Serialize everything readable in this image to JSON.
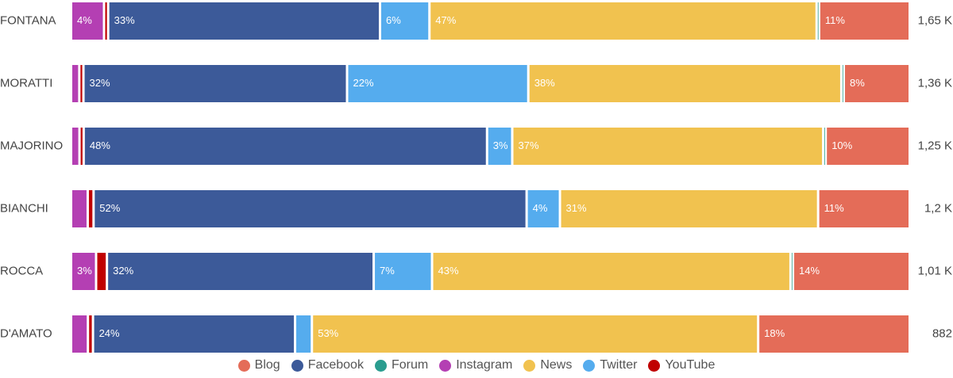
{
  "chart_data": {
    "type": "bar",
    "orientation": "horizontal",
    "stacked": true,
    "normalized": true,
    "categories": [
      "FONTANA",
      "MORATTI",
      "MAJORINO",
      "BIANCHI",
      "ROCCA",
      "D'AMATO"
    ],
    "totals": [
      "1,65 K",
      "1,36 K",
      "1,25 K",
      "1,2 K",
      "1,01 K",
      "882"
    ],
    "series": [
      {
        "name": "Instagram",
        "color": "#b43fb3",
        "values": [
          4,
          1,
          1,
          2,
          3,
          2
        ],
        "labels": [
          "4%",
          "",
          "",
          "",
          "3%",
          ""
        ]
      },
      {
        "name": "YouTube",
        "color": "#c00000",
        "values": [
          0.5,
          0.5,
          0.5,
          0.7,
          1.3,
          0.6
        ],
        "labels": [
          "",
          "",
          "",
          "",
          "",
          ""
        ]
      },
      {
        "name": "Facebook",
        "color": "#3c5a99",
        "values": [
          33,
          32,
          48,
          52,
          32,
          24
        ],
        "labels": [
          "33%",
          "32%",
          "48%",
          "52%",
          "32%",
          "24%"
        ]
      },
      {
        "name": "Twitter",
        "color": "#55acee",
        "values": [
          6,
          22,
          3,
          4,
          7,
          2
        ],
        "labels": [
          "6%",
          "22%",
          "3%",
          "4%",
          "7%",
          ""
        ]
      },
      {
        "name": "News",
        "color": "#f1c24f",
        "values": [
          47,
          38,
          37,
          31,
          43,
          53
        ],
        "labels": [
          "47%",
          "38%",
          "37%",
          "31%",
          "43%",
          "53%"
        ]
      },
      {
        "name": "Forum",
        "color": "#2a9d8f",
        "values": [
          0.3,
          0.3,
          0.3,
          0,
          0.3,
          0
        ],
        "labels": [
          "",
          "",
          "",
          "",
          "",
          ""
        ]
      },
      {
        "name": "Blog",
        "color": "#e46c58",
        "values": [
          11,
          8,
          10,
          11,
          14,
          18
        ],
        "labels": [
          "11%",
          "8%",
          "10%",
          "11%",
          "14%",
          "18%"
        ]
      }
    ],
    "legend": {
      "position": "bottom",
      "order": [
        "Blog",
        "Facebook",
        "Forum",
        "Instagram",
        "News",
        "Twitter",
        "YouTube"
      ]
    },
    "grid": false
  }
}
